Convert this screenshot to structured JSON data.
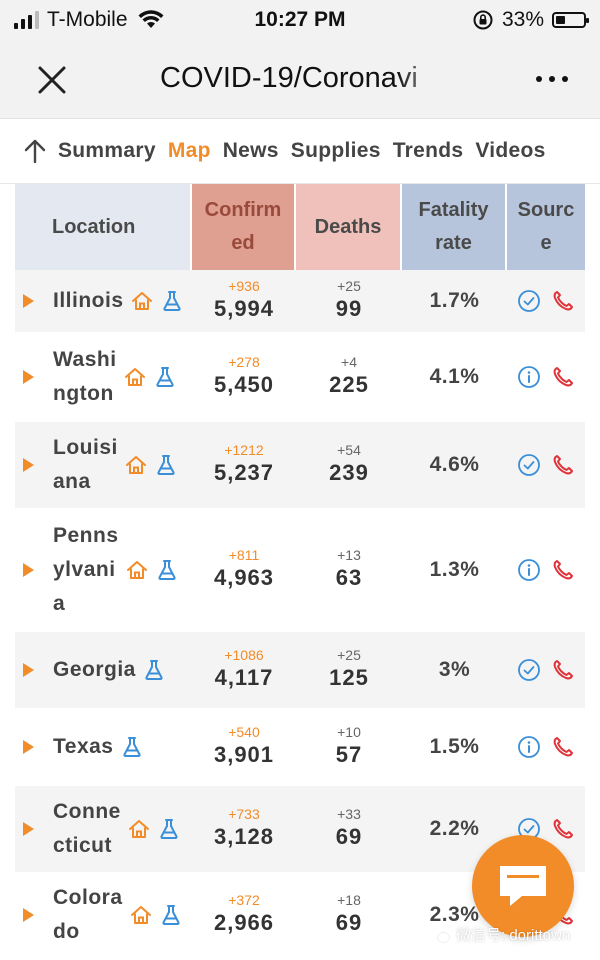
{
  "status_bar": {
    "carrier": "T-Mobile",
    "time": "10:27 PM",
    "battery": "33%",
    "battery_level": 0.33
  },
  "nav": {
    "title": "COVID-19/Coronavi"
  },
  "tabs": [
    {
      "label": "Summary",
      "active": false
    },
    {
      "label": "Map",
      "active": true
    },
    {
      "label": "News",
      "active": false
    },
    {
      "label": "Supplies",
      "active": false
    },
    {
      "label": "Trends",
      "active": false
    },
    {
      "label": "Videos",
      "active": false
    }
  ],
  "table": {
    "headers": {
      "location": "Location",
      "confirmed_1": "Confirm",
      "confirmed_2": "ed",
      "deaths": "Deaths",
      "fatality_1": "Fatality",
      "fatality_2": "rate",
      "source_1": "Sourc",
      "source_2": "e"
    },
    "rows": [
      {
        "name_lines": [
          "Illinois"
        ],
        "house": true,
        "flask": true,
        "confirmed_delta": "+936",
        "confirmed": "5,994",
        "deaths_delta": "+25",
        "deaths": "99",
        "fatality": "1.7%",
        "source_icon": "check-circle-icon",
        "phone": true
      },
      {
        "name_lines": [
          "Washi",
          "ngton"
        ],
        "house": true,
        "flask": true,
        "confirmed_delta": "+278",
        "confirmed": "5,450",
        "deaths_delta": "+4",
        "deaths": "225",
        "fatality": "4.1%",
        "source_icon": "info-circle-icon",
        "phone": true
      },
      {
        "name_lines": [
          "Louisi",
          "ana"
        ],
        "house": true,
        "flask": true,
        "confirmed_delta": "+1212",
        "confirmed": "5,237",
        "deaths_delta": "+54",
        "deaths": "239",
        "fatality": "4.6%",
        "source_icon": "check-circle-icon",
        "phone": true
      },
      {
        "name_lines": [
          "Penns",
          "ylvani",
          "a"
        ],
        "house": true,
        "flask": true,
        "confirmed_delta": "+811",
        "confirmed": "4,963",
        "deaths_delta": "+13",
        "deaths": "63",
        "fatality": "1.3%",
        "source_icon": "info-circle-icon",
        "phone": true
      },
      {
        "name_lines": [
          "Georgia"
        ],
        "house": false,
        "flask": true,
        "confirmed_delta": "+1086",
        "confirmed": "4,117",
        "deaths_delta": "+25",
        "deaths": "125",
        "fatality": "3%",
        "source_icon": "check-circle-icon",
        "phone": true
      },
      {
        "name_lines": [
          "Texas"
        ],
        "house": false,
        "flask": true,
        "confirmed_delta": "+540",
        "confirmed": "3,901",
        "deaths_delta": "+10",
        "deaths": "57",
        "fatality": "1.5%",
        "source_icon": "info-circle-icon",
        "phone": true
      },
      {
        "name_lines": [
          "Conne",
          "cticut"
        ],
        "house": true,
        "flask": true,
        "confirmed_delta": "+733",
        "confirmed": "3,128",
        "deaths_delta": "+33",
        "deaths": "69",
        "fatality": "2.2%",
        "source_icon": "check-circle-icon",
        "phone": true
      },
      {
        "name_lines": [
          "Colora",
          "do"
        ],
        "house": true,
        "flask": true,
        "confirmed_delta": "+372",
        "confirmed": "2,966",
        "deaths_delta": "+18",
        "deaths": "69",
        "fatality": "2.3%",
        "source_icon": "check-circle-icon",
        "phone": true
      }
    ]
  },
  "watermark": "微信号: dorittown",
  "colors": {
    "accent": "#f28c28",
    "blue_icon": "#3a8fd8",
    "phone_red": "#e0343a",
    "header_location": "#e3e8f1",
    "header_confirmed": "#dfa092",
    "header_deaths": "#f0c1ba",
    "header_blue": "#b7c5dc"
  }
}
